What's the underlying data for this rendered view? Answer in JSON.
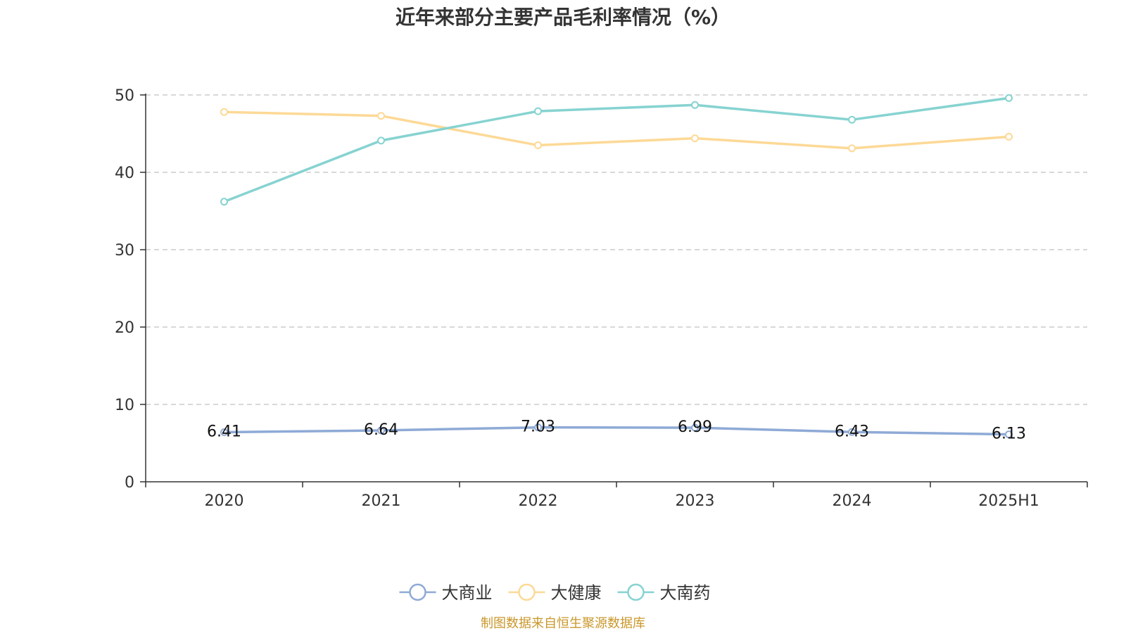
{
  "chart_data": {
    "type": "line",
    "title": "近年来部分主要产品毛利率情况（%）",
    "categories": [
      "2020",
      "2021",
      "2022",
      "2023",
      "2024",
      "2025H1"
    ],
    "ylim": [
      0,
      50
    ],
    "yticks": [
      "0",
      "10",
      "20",
      "30",
      "40",
      "50"
    ],
    "grid": true,
    "legend_position": "bottom",
    "series": [
      {
        "name": "大商业",
        "values": [
          6.41,
          6.64,
          7.03,
          6.99,
          6.43,
          6.13
        ],
        "labels": [
          "6.41",
          "6.64",
          "7.03",
          "6.99",
          "6.43",
          "6.13"
        ],
        "color": "#8eaad6"
      },
      {
        "name": "大健康",
        "values": [
          47.8,
          47.3,
          43.5,
          44.4,
          43.1,
          44.6
        ],
        "color": "#fdd996"
      },
      {
        "name": "大南药",
        "values": [
          36.2,
          44.1,
          47.9,
          48.7,
          46.8,
          49.6
        ],
        "color": "#86d3d1"
      }
    ]
  },
  "source_note": "制图数据来自恒生聚源数据库",
  "colors": {
    "title": "#333333",
    "axis": "#333333",
    "grid": "#cccccc",
    "source_note": "#c9972b"
  }
}
